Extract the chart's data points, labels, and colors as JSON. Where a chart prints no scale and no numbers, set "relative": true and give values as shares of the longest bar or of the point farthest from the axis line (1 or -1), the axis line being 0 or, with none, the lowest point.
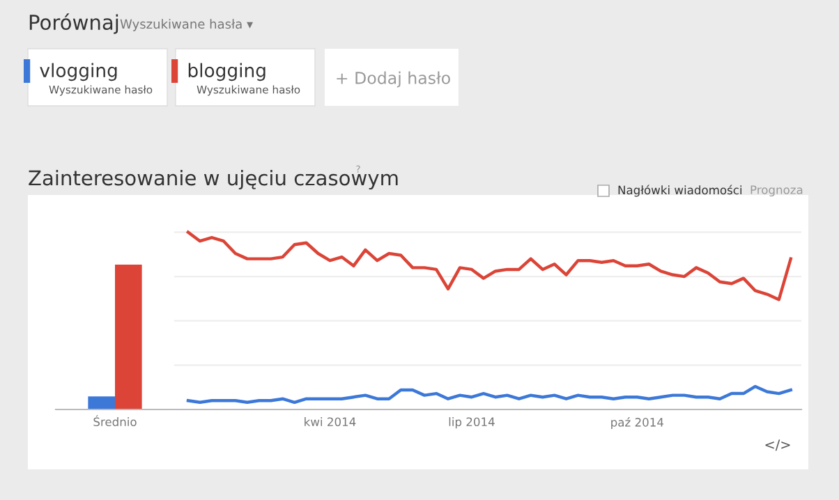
{
  "chart_data": [
    {
      "type": "bar",
      "relative": true,
      "title": "Zainteresowanie w ujęciu czasowym",
      "categories": [
        "Średnio"
      ],
      "series": [
        {
          "color": "#3c78d8",
          "values": [
            0.09
          ]
        },
        {
          "color": "#db4437",
          "values": [
            1.0
          ]
        }
      ],
      "annotations": [
        "Porównaj",
        "Wyszukiwane hasła ▾",
        "Wyszukiwane hasło",
        "Wyszukiwane hasło",
        "+ Dodaj hasło",
        "Nagłówki wiadomości",
        "Prognoza",
        "</>",
        "?"
      ]
    },
    {
      "type": "line",
      "relative": true,
      "categories": [
        null,
        null,
        null,
        null,
        null,
        null,
        null,
        null,
        null,
        null,
        null,
        null,
        "kwi 2014",
        null,
        null,
        null,
        null,
        null,
        null,
        null,
        null,
        null,
        null,
        null,
        "lip 2014",
        null,
        null,
        null,
        null,
        null,
        null,
        null,
        null,
        null,
        null,
        null,
        null,
        null,
        "paź 2014",
        null,
        null,
        null,
        null,
        null,
        null,
        null,
        null,
        null,
        null,
        null,
        null,
        null
      ],
      "series": [
        {
          "name": "vlogging",
          "color": "#3c78d8",
          "values": [
            0.05,
            0.04,
            0.05,
            0.05,
            0.05,
            0.04,
            0.05,
            0.05,
            0.06,
            0.04,
            0.06,
            0.06,
            0.06,
            0.06,
            0.07,
            0.08,
            0.06,
            0.06,
            0.11,
            0.11,
            0.08,
            0.09,
            0.06,
            0.08,
            0.07,
            0.09,
            0.07,
            0.08,
            0.06,
            0.08,
            0.07,
            0.08,
            0.06,
            0.08,
            0.07,
            0.07,
            0.06,
            0.07,
            0.07,
            0.06,
            0.07,
            0.08,
            0.08,
            0.07,
            0.07,
            0.06,
            0.09,
            0.09,
            0.13,
            0.1,
            0.09,
            0.11
          ]
        },
        {
          "name": "blogging",
          "color": "#db4437",
          "values": [
            1.0,
            0.95,
            0.97,
            0.95,
            0.88,
            0.85,
            0.85,
            0.85,
            0.86,
            0.93,
            0.94,
            0.88,
            0.84,
            0.86,
            0.81,
            0.9,
            0.84,
            0.88,
            0.87,
            0.8,
            0.8,
            0.79,
            0.68,
            0.8,
            0.79,
            0.74,
            0.78,
            0.79,
            0.79,
            0.85,
            0.79,
            0.82,
            0.76,
            0.84,
            0.84,
            0.83,
            0.84,
            0.81,
            0.81,
            0.82,
            0.78,
            0.76,
            0.75,
            0.8,
            0.77,
            0.72,
            0.71,
            0.74,
            0.67,
            0.65,
            0.62,
            0.85
          ]
        }
      ],
      "grid": "y",
      "legend": "top left",
      "marker": "none"
    }
  ]
}
